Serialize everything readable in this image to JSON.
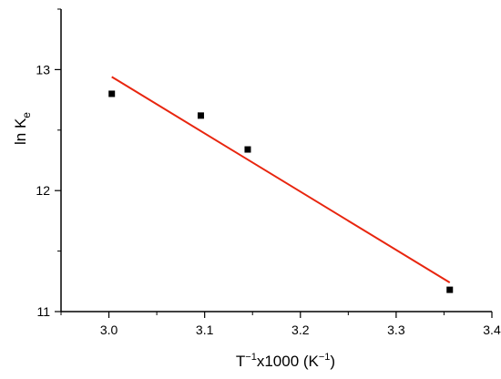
{
  "chart_data": {
    "type": "scatter",
    "title": "",
    "xlabel": {
      "base": "T",
      "sup1": "−1",
      "mid": "x1000 (K",
      "sup2": "−1",
      "tail": ")"
    },
    "ylabel": {
      "base": "ln K",
      "sub": "e"
    },
    "xlim": [
      2.95,
      3.4
    ],
    "ylim": [
      11.0,
      13.5
    ],
    "xticks": [
      3.0,
      3.1,
      3.2,
      3.3,
      3.4
    ],
    "xtick_labels": [
      "3.0",
      "3.1",
      "3.2",
      "3.3",
      "3.4"
    ],
    "yticks": [
      11,
      12,
      13
    ],
    "ytick_labels": [
      "11",
      "12",
      "13"
    ],
    "grid": false,
    "legend": "none",
    "points": [
      {
        "x": 3.003,
        "y": 12.8
      },
      {
        "x": 3.096,
        "y": 12.62
      },
      {
        "x": 3.145,
        "y": 12.34
      },
      {
        "x": 3.356,
        "y": 11.18
      }
    ],
    "fit_line": {
      "x": [
        3.003,
        3.356
      ],
      "y": [
        12.94,
        11.24
      ]
    },
    "colors": {
      "points": "#000000",
      "fit_line": "#e8250e",
      "axes": "#000000"
    }
  }
}
